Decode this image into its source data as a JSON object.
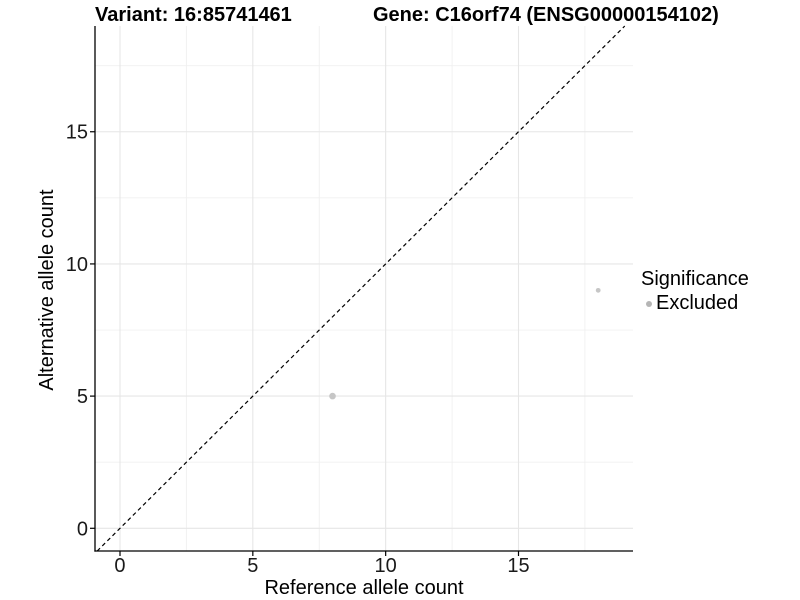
{
  "chart_data": {
    "type": "scatter",
    "titles": {
      "left": "Variant: 16:85741461",
      "right": "Gene: C16orf74 (ENSG00000154102)"
    },
    "xlabel": "Reference allele count",
    "ylabel": "Alternative allele count",
    "xlim": [
      -0.941,
      19.31
    ],
    "ylim": [
      -0.859,
      19.0
    ],
    "x_ticks": [
      0,
      5,
      10,
      15
    ],
    "y_ticks": [
      0,
      5,
      10,
      15
    ],
    "x_minor_gridlines": [
      2.5,
      7.5,
      12.5,
      17.5
    ],
    "y_minor_gridlines": [
      2.5,
      7.5,
      12.5,
      17.5
    ],
    "grid": "major+minor",
    "identity_line": {
      "slope": 1,
      "intercept": 0,
      "style": "dashed",
      "color": "#000000"
    },
    "points": [
      {
        "x": 8,
        "y": 5,
        "significance": "Excluded",
        "radius_px": 3.3
      },
      {
        "x": 18,
        "y": 9,
        "significance": "Excluded",
        "radius_px": 2.4
      }
    ],
    "point_color": "#c6c6c6",
    "legend": {
      "position": "right",
      "title": "Significance",
      "items": [
        {
          "label": "Excluded",
          "color": "#b5b5b5"
        }
      ]
    }
  },
  "colors": {
    "background": "#ffffff",
    "grid_major": "#e6e6e6",
    "grid_minor": "#f0f0f0",
    "axis_line": "#000000",
    "tick_text": "#1a1a1a"
  }
}
